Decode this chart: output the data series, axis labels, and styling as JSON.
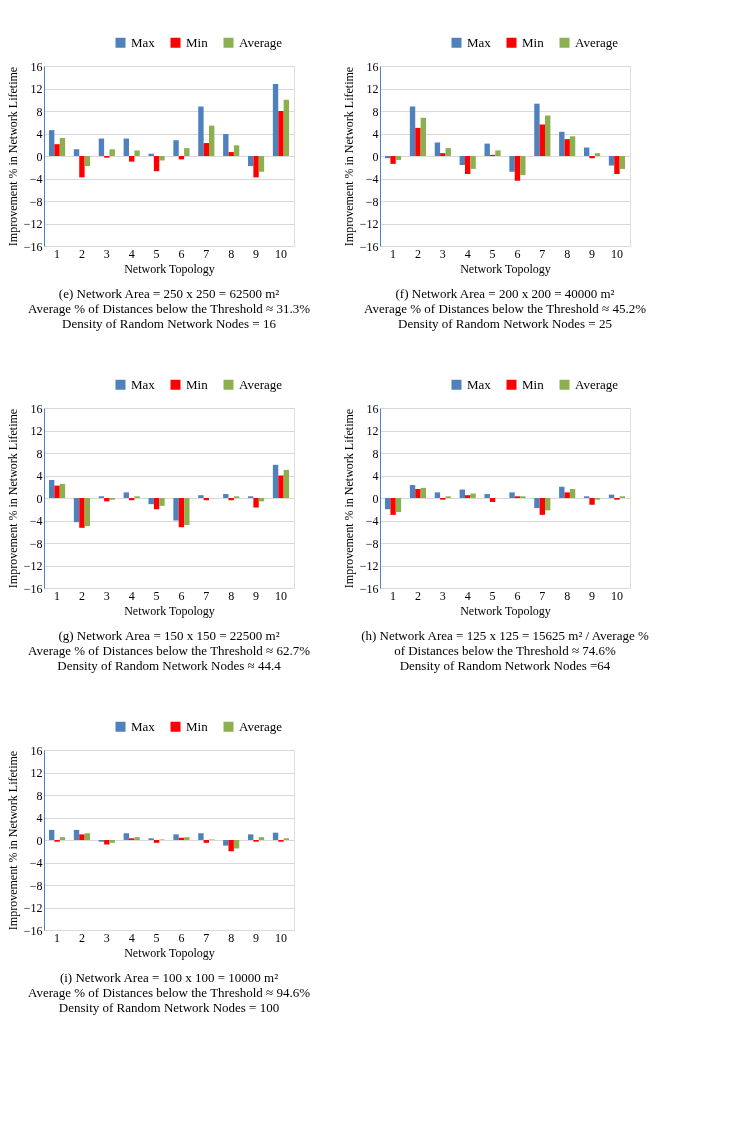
{
  "chart_data": [
    {
      "type": "bar",
      "categories": [
        "1",
        "2",
        "3",
        "4",
        "5",
        "6",
        "7",
        "8",
        "9",
        "10"
      ],
      "xlabel": "Network Topology",
      "ylabel": "Improvement % in Network Lifetime",
      "ylim": [
        -16,
        16
      ],
      "yticks": [
        -16,
        -12,
        -8,
        -4,
        0,
        4,
        8,
        12,
        16
      ],
      "grid": "y",
      "legend": "top right",
      "series": [
        {
          "name": "Max",
          "color": "#4f81bd",
          "values": [
            4.6,
            1.2,
            3.1,
            3.1,
            0.4,
            2.8,
            8.8,
            3.9,
            -1.8,
            12.8
          ]
        },
        {
          "name": "Min",
          "color": "#ff0000",
          "values": [
            2.1,
            -3.8,
            -0.3,
            -1.0,
            -2.7,
            -0.6,
            2.3,
            0.7,
            -3.8,
            8.0
          ]
        },
        {
          "name": "Average",
          "color": "#8db04e",
          "values": [
            3.2,
            -1.8,
            1.2,
            1.0,
            -0.8,
            1.4,
            5.4,
            1.9,
            -2.8,
            10.0
          ]
        }
      ],
      "annotations": [
        "(e) Network Area = 250 x 250 = 62500 m²",
        "Average % of Distances below the Threshold ≈ 31.3%",
        "Density of Random Network Nodes = 16"
      ]
    },
    {
      "type": "bar",
      "categories": [
        "1",
        "2",
        "3",
        "4",
        "5",
        "6",
        "7",
        "8",
        "9",
        "10"
      ],
      "xlabel": "Network Topology",
      "ylabel": "Improvement % in Network Lifetime",
      "ylim": [
        -16,
        16
      ],
      "yticks": [
        -16,
        -12,
        -8,
        -4,
        0,
        4,
        8,
        12,
        16
      ],
      "grid": "y",
      "legend": "top right",
      "series": [
        {
          "name": "Max",
          "color": "#4f81bd",
          "values": [
            -0.4,
            8.8,
            2.4,
            -1.6,
            2.2,
            -2.8,
            9.3,
            4.3,
            1.5,
            -1.7
          ]
        },
        {
          "name": "Min",
          "color": "#ff0000",
          "values": [
            -1.4,
            5.0,
            0.5,
            -3.2,
            0.2,
            -4.4,
            5.6,
            3.0,
            -0.4,
            -3.2
          ]
        },
        {
          "name": "Average",
          "color": "#8db04e",
          "values": [
            -0.7,
            6.8,
            1.4,
            -2.3,
            1.0,
            -3.4,
            7.2,
            3.5,
            0.5,
            -2.3
          ]
        }
      ],
      "annotations": [
        "(f) Network Area = 200 x 200 = 40000 m²",
        "Average % of Distances below the Threshold ≈ 45.2%",
        "Density of Random Network Nodes = 25"
      ]
    },
    {
      "type": "bar",
      "categories": [
        "1",
        "2",
        "3",
        "4",
        "5",
        "6",
        "7",
        "8",
        "9",
        "10"
      ],
      "xlabel": "Network Topology",
      "ylabel": "Improvement % in Network Lifetime",
      "ylim": [
        -16,
        16
      ],
      "yticks": [
        -16,
        -12,
        -8,
        -4,
        0,
        4,
        8,
        12,
        16
      ],
      "grid": "y",
      "legend": "top right",
      "series": [
        {
          "name": "Max",
          "color": "#4f81bd",
          "values": [
            3.2,
            -4.3,
            0.3,
            1.0,
            -1.1,
            -4.0,
            0.5,
            0.7,
            0.3,
            5.9
          ]
        },
        {
          "name": "Min",
          "color": "#ff0000",
          "values": [
            2.2,
            -5.3,
            -0.6,
            -0.4,
            -2.0,
            -5.2,
            -0.4,
            -0.4,
            -1.7,
            4.0
          ]
        },
        {
          "name": "Average",
          "color": "#8db04e",
          "values": [
            2.5,
            -5.0,
            -0.3,
            0.3,
            -1.4,
            -4.8,
            0.0,
            0.3,
            -0.6,
            5.0
          ]
        }
      ],
      "annotations": [
        "(g) Network Area = 150 x 150 = 22500 m²",
        "Average % of Distances below the Threshold ≈ 62.7%",
        "Density of Random Network Nodes ≈ 44.4"
      ]
    },
    {
      "type": "bar",
      "categories": [
        "1",
        "2",
        "3",
        "4",
        "5",
        "6",
        "7",
        "8",
        "9",
        "10"
      ],
      "xlabel": "Network Topology",
      "ylabel": "Improvement % in Network Lifetime",
      "ylim": [
        -16,
        16
      ],
      "yticks": [
        -16,
        -12,
        -8,
        -4,
        0,
        4,
        8,
        12,
        16
      ],
      "grid": "y",
      "legend": "top right",
      "series": [
        {
          "name": "Max",
          "color": "#4f81bd",
          "values": [
            -2.0,
            2.3,
            1.0,
            1.5,
            0.7,
            1.0,
            -1.8,
            2.0,
            0.3,
            0.6
          ]
        },
        {
          "name": "Min",
          "color": "#ff0000",
          "values": [
            -3.0,
            1.6,
            -0.3,
            0.5,
            -0.7,
            0.3,
            -3.0,
            1.0,
            -1.2,
            -0.3
          ]
        },
        {
          "name": "Average",
          "color": "#8db04e",
          "values": [
            -2.5,
            1.8,
            0.3,
            0.8,
            0.0,
            0.3,
            -2.2,
            1.6,
            -0.3,
            0.3
          ]
        }
      ],
      "annotations": [
        "(h) Network Area = 125 x 125 = 15625 m² / Average %",
        "of Distances below the Threshold ≈ 74.6%",
        "Density of Random Network Nodes =64"
      ]
    },
    {
      "type": "bar",
      "categories": [
        "1",
        "2",
        "3",
        "4",
        "5",
        "6",
        "7",
        "8",
        "9",
        "10"
      ],
      "xlabel": "Network Topology",
      "ylabel": "Improvement % in Network Lifetime",
      "ylim": [
        -16,
        16
      ],
      "yticks": [
        -16,
        -12,
        -8,
        -4,
        0,
        4,
        8,
        12,
        16
      ],
      "grid": "y",
      "legend": "top right",
      "series": [
        {
          "name": "Max",
          "color": "#4f81bd",
          "values": [
            1.8,
            1.8,
            -0.3,
            1.2,
            0.3,
            1.0,
            1.2,
            -1.0,
            1.0,
            1.3
          ]
        },
        {
          "name": "Min",
          "color": "#ff0000",
          "values": [
            -0.3,
            1.0,
            -0.8,
            0.3,
            -0.5,
            0.4,
            -0.5,
            -2.0,
            -0.3,
            -0.3
          ]
        },
        {
          "name": "Average",
          "color": "#8db04e",
          "values": [
            0.5,
            1.2,
            -0.5,
            0.5,
            0.1,
            0.5,
            0.1,
            -1.5,
            0.5,
            0.3
          ]
        }
      ],
      "annotations": [
        "(i) Network Area = 100 x 100 = 10000 m²",
        "Average % of Distances below the Threshold ≈ 94.6%",
        "Density of Random Network Nodes = 100"
      ]
    }
  ]
}
